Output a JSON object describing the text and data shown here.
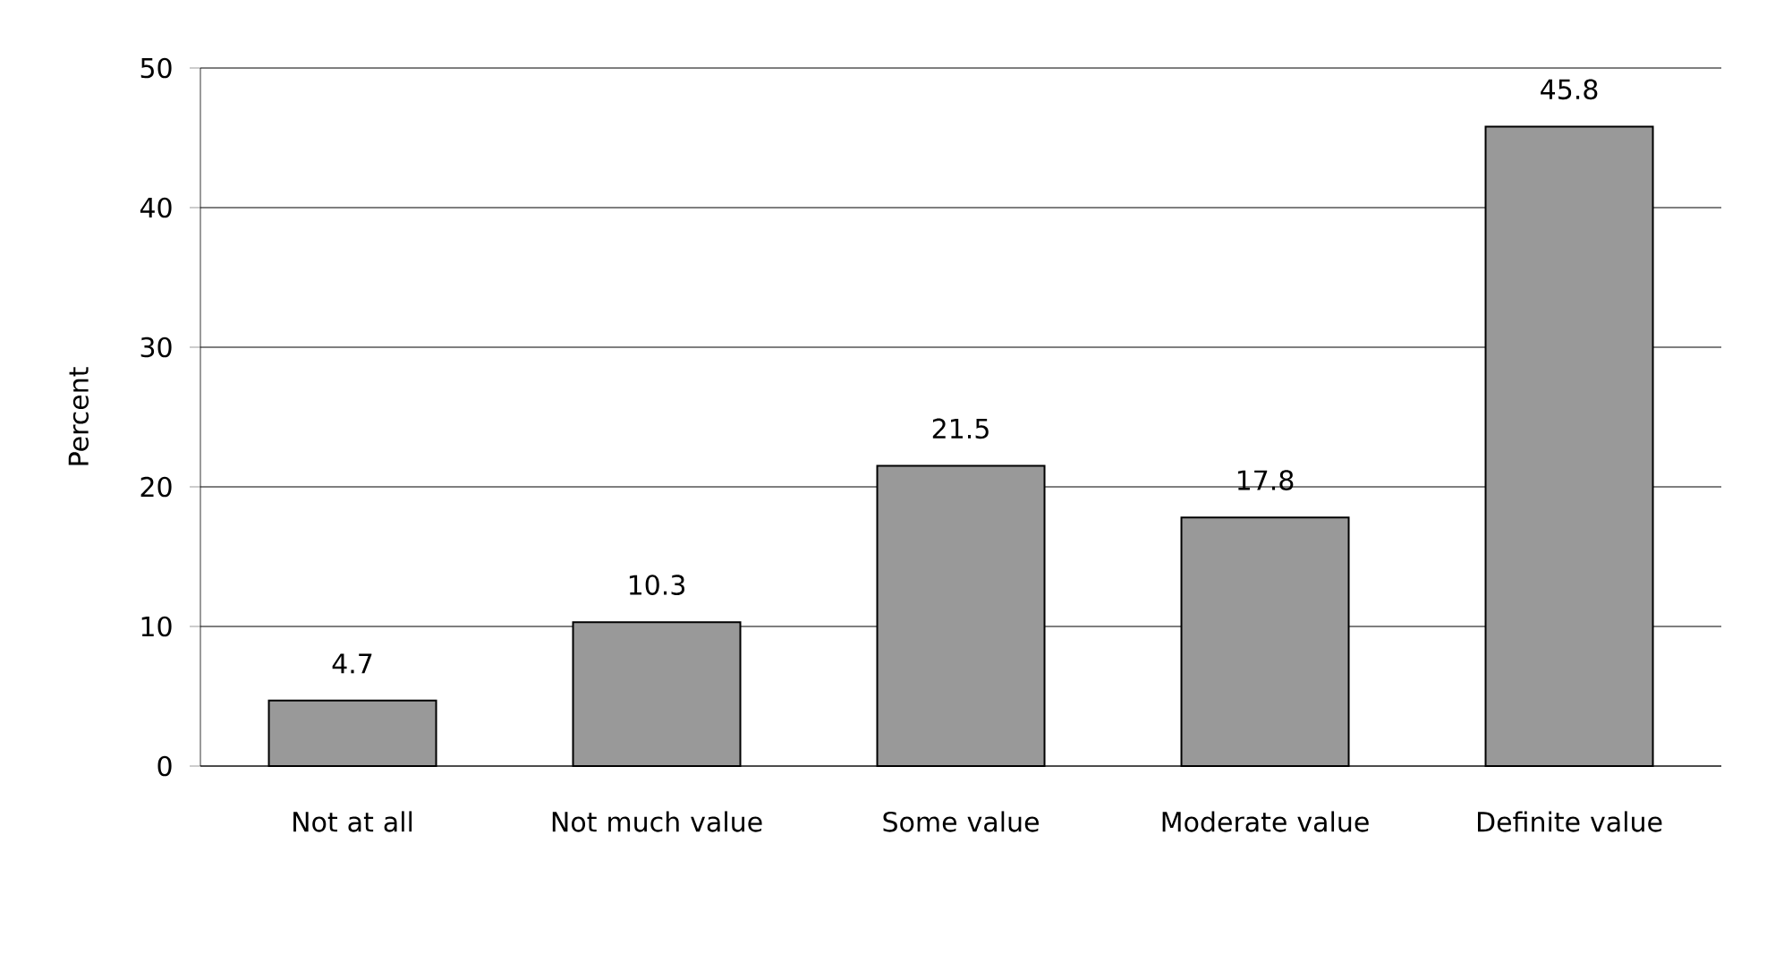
{
  "chart_data": {
    "type": "bar",
    "ylabel": "Percent",
    "categories": [
      "Not at all",
      "Not much value",
      "Some value",
      "Moderate value",
      "Definite value"
    ],
    "values": [
      4.7,
      10.3,
      21.5,
      17.8,
      45.8
    ],
    "color": "#999999",
    "ylim": [
      0,
      50
    ],
    "yticks": [
      0,
      10,
      20,
      30,
      40,
      50
    ],
    "grid": "y",
    "data_labels": true
  }
}
